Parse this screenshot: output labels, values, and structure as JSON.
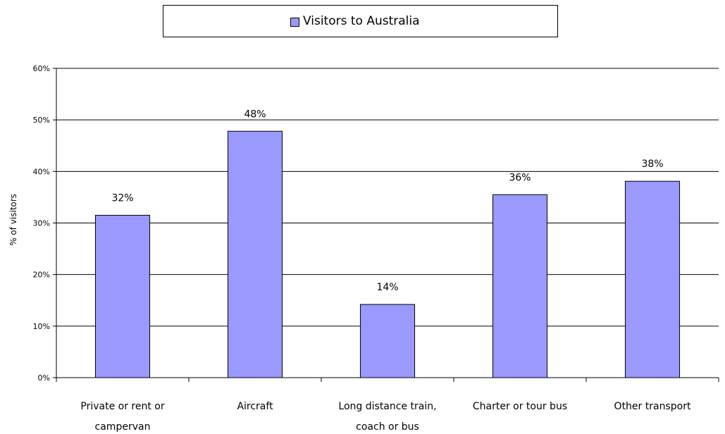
{
  "chart_data": {
    "type": "bar",
    "categories": [
      [
        "Private or rent or",
        "campervan"
      ],
      [
        "Aircraft"
      ],
      [
        "Long distance train,",
        "coach or bus"
      ],
      [
        "Charter or tour bus"
      ],
      [
        "Other transport"
      ]
    ],
    "series": [
      {
        "name": "Visitors to Australia",
        "values": [
          0.315,
          0.478,
          0.142,
          0.355,
          0.381
        ]
      }
    ],
    "data_labels": [
      "32%",
      "48%",
      "14%",
      "36%",
      "38%"
    ],
    "ylabel": "% of visitors",
    "ylim": [
      0,
      0.6
    ],
    "yticks": [
      "0%",
      "10%",
      "20%",
      "30%",
      "40%",
      "50%",
      "60%"
    ],
    "grid": true,
    "legend_position": "top",
    "bar_color": "#9999ff"
  }
}
